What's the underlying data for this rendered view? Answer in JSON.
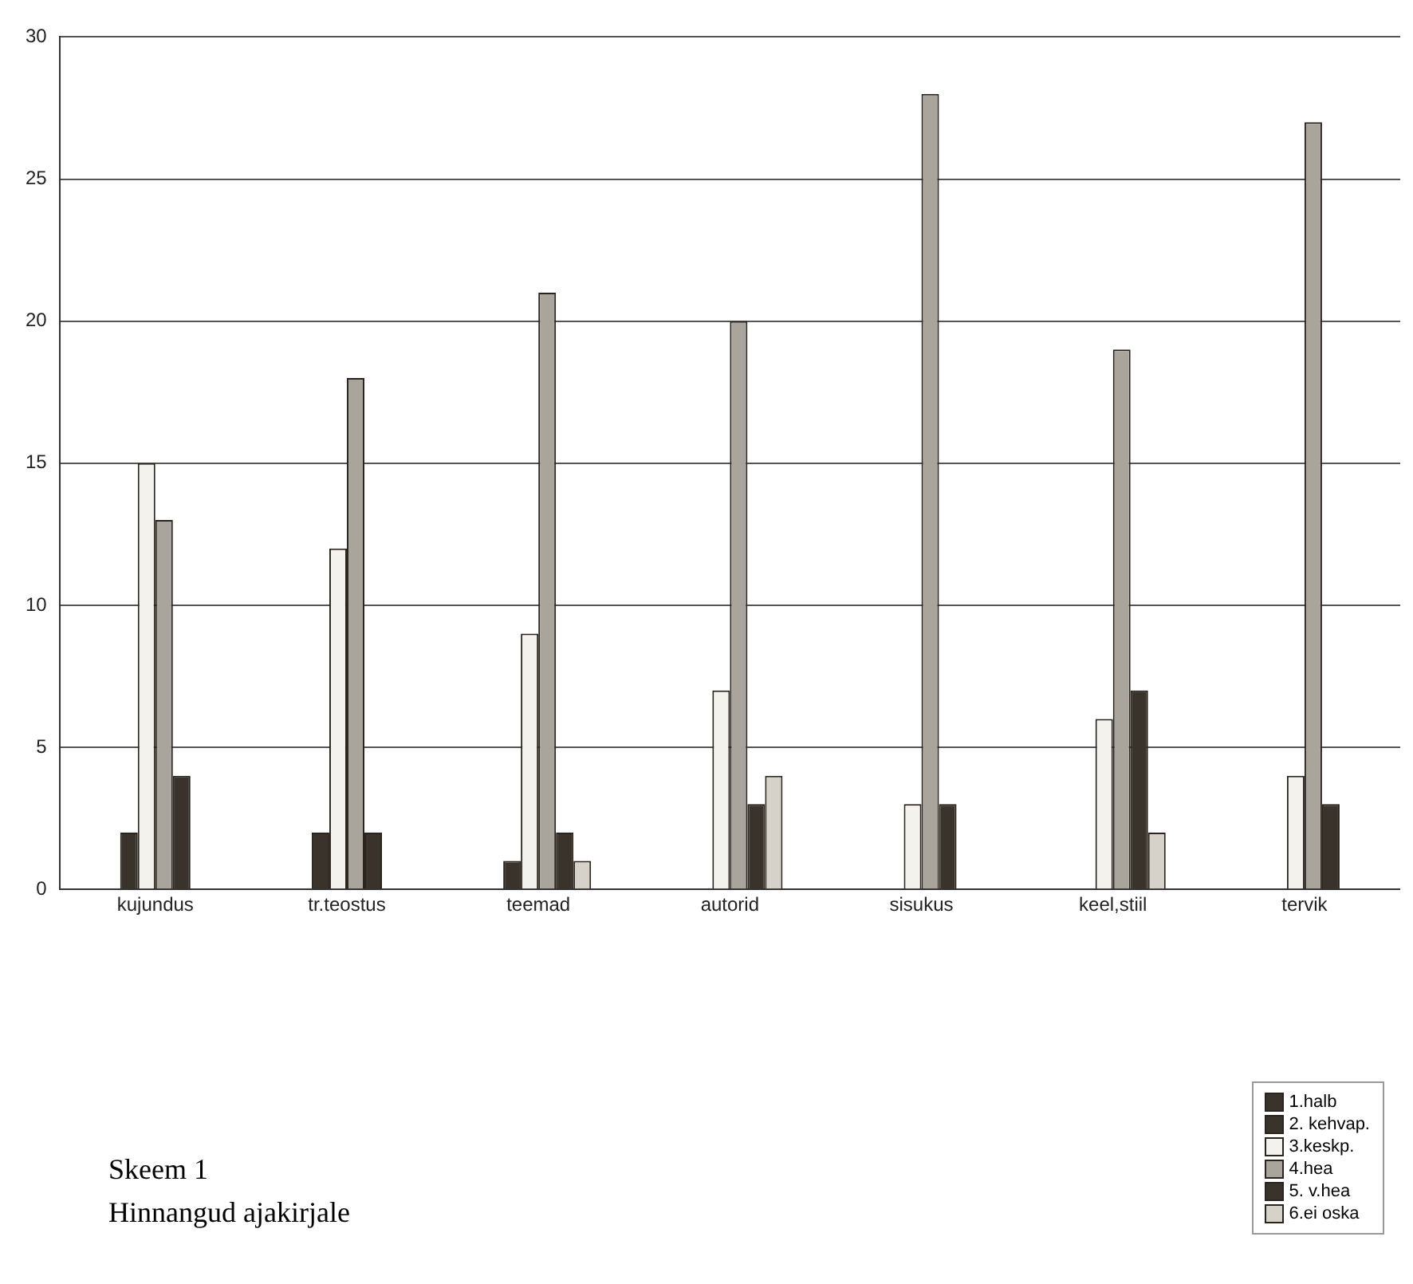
{
  "chart_data": {
    "type": "bar",
    "title": "Skeem 1",
    "subtitle": "Hinnangud ajakirjale",
    "categories": [
      "kujundus",
      "tr.teostus",
      "teemad",
      "autorid",
      "sisukus",
      "keel,stiil",
      "tervik"
    ],
    "series": [
      {
        "name": "1.halb",
        "color": "#3a332c",
        "values": [
          0,
          0,
          0,
          0,
          0,
          0,
          0
        ]
      },
      {
        "name": "2. kehvap.",
        "color": "#3a332c",
        "values": [
          2,
          2,
          1,
          0,
          0,
          0,
          0
        ]
      },
      {
        "name": "3.keskp.",
        "color": "#f4f2ec",
        "values": [
          15,
          12,
          9,
          7,
          3,
          6,
          4
        ]
      },
      {
        "name": "4.hea",
        "color": "#aaa59c",
        "values": [
          13,
          18,
          21,
          20,
          28,
          19,
          27
        ]
      },
      {
        "name": "5. v.hea",
        "color": "#3a332c",
        "values": [
          4,
          2,
          2,
          3,
          3,
          7,
          3
        ]
      },
      {
        "name": "6.ei oska",
        "color": "#d6d2ca",
        "values": [
          0,
          0,
          1,
          4,
          0,
          2,
          0
        ]
      }
    ],
    "ylim": [
      0,
      30
    ],
    "yticks": [
      0,
      5,
      10,
      15,
      20,
      25,
      30
    ],
    "grid": "y",
    "legend": "bottom right"
  }
}
